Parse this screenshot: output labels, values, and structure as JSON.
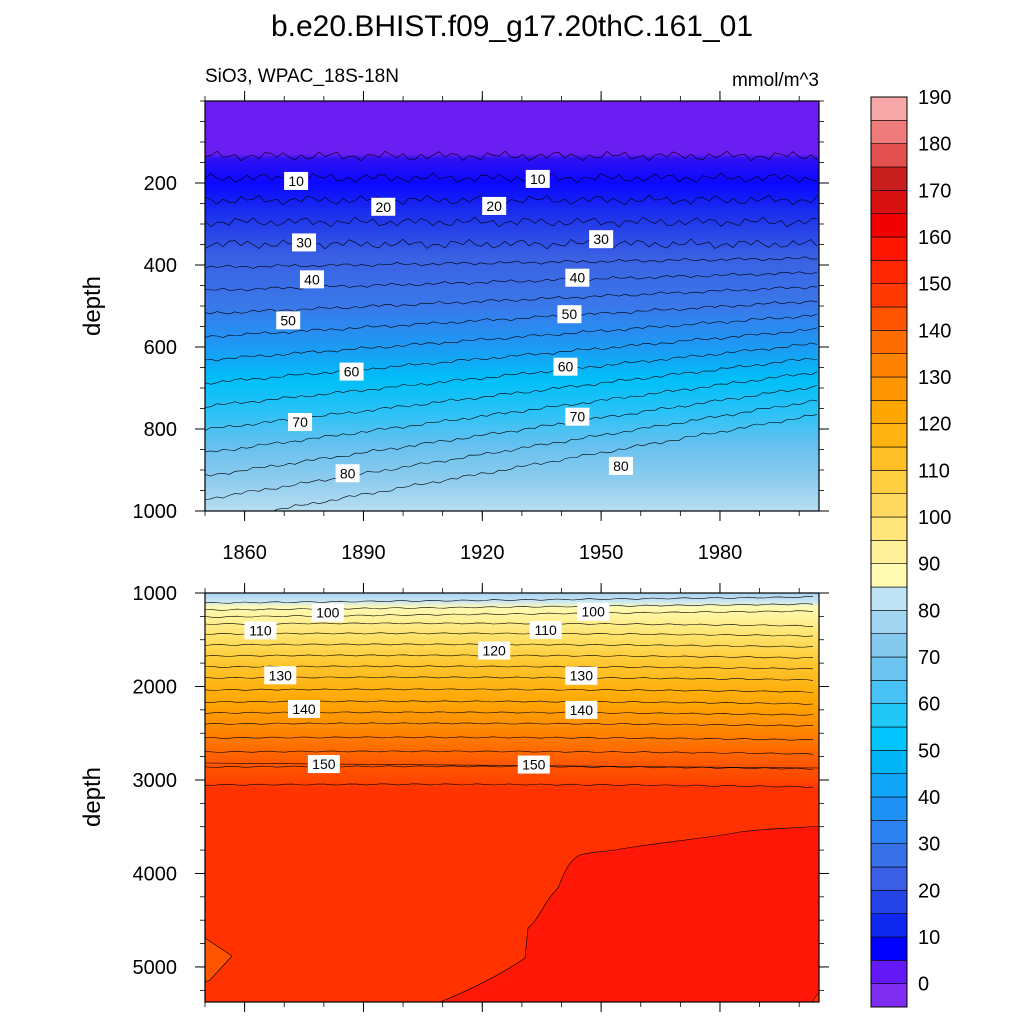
{
  "figure": {
    "title": "b.e20.BHIST.f09_g17.20thC.161_01",
    "subtitle_left": "SiO3, WPAC_18S-18N",
    "units": "mmol/m^3"
  },
  "chart_data": [
    {
      "type": "heatmap",
      "panel": "upper",
      "variable": "SiO3",
      "region": "WPAC_18S-18N",
      "units": "mmol/m^3",
      "ylabel": "depth",
      "xlabel": "",
      "xlim": [
        1850,
        2005
      ],
      "ylim": [
        1000,
        0
      ],
      "xticks": [
        1860,
        1890,
        1920,
        1950,
        1980
      ],
      "yticks": [
        200,
        400,
        600,
        800,
        1000
      ],
      "contour_labels": [
        {
          "value": "10",
          "x": 1873,
          "y": 195
        },
        {
          "value": "10",
          "x": 1934,
          "y": 190
        },
        {
          "value": "20",
          "x": 1895,
          "y": 258
        },
        {
          "value": "20",
          "x": 1923,
          "y": 256
        },
        {
          "value": "30",
          "x": 1875,
          "y": 345
        },
        {
          "value": "30",
          "x": 1950,
          "y": 337
        },
        {
          "value": "40",
          "x": 1877,
          "y": 435
        },
        {
          "value": "40",
          "x": 1944,
          "y": 431
        },
        {
          "value": "50",
          "x": 1871,
          "y": 535
        },
        {
          "value": "50",
          "x": 1942,
          "y": 520
        },
        {
          "value": "60",
          "x": 1887,
          "y": 660
        },
        {
          "value": "60",
          "x": 1941,
          "y": 648
        },
        {
          "value": "70",
          "x": 1874,
          "y": 783
        },
        {
          "value": "70",
          "x": 1944,
          "y": 770
        },
        {
          "value": "80",
          "x": 1886,
          "y": 908
        },
        {
          "value": "80",
          "x": 1955,
          "y": 890
        }
      ]
    },
    {
      "type": "heatmap",
      "panel": "lower",
      "variable": "SiO3",
      "units": "mmol/m^3",
      "ylabel": "depth",
      "xlabel": "",
      "xlim": [
        1850,
        2005
      ],
      "ylim": [
        5375,
        1000
      ],
      "xticks": [
        1860,
        1890,
        1920,
        1950,
        1980
      ],
      "yticks": [
        1000,
        2000,
        3000,
        4000,
        5000
      ],
      "contour_labels": [
        {
          "value": "100",
          "x": 1881,
          "y": 1210
        },
        {
          "value": "100",
          "x": 1948,
          "y": 1200
        },
        {
          "value": "110",
          "x": 1864,
          "y": 1400
        },
        {
          "value": "110",
          "x": 1936,
          "y": 1395
        },
        {
          "value": "120",
          "x": 1923,
          "y": 1615
        },
        {
          "value": "130",
          "x": 1869,
          "y": 1880
        },
        {
          "value": "130",
          "x": 1945,
          "y": 1885
        },
        {
          "value": "140",
          "x": 1875,
          "y": 2240
        },
        {
          "value": "140",
          "x": 1945,
          "y": 2250
        },
        {
          "value": "150",
          "x": 1880,
          "y": 2830
        },
        {
          "value": "150",
          "x": 1933,
          "y": 2835
        }
      ]
    }
  ],
  "colorbar": {
    "labels": [
      "0",
      "10",
      "20",
      "30",
      "40",
      "50",
      "60",
      "70",
      "80",
      "90",
      "100",
      "110",
      "120",
      "130",
      "140",
      "150",
      "160",
      "170",
      "180",
      "190"
    ],
    "colors": [
      "#7f2df0",
      "#6219f5",
      "#0000ff",
      "#0f28f0",
      "#2545e8",
      "#3a5fe6",
      "#3870e8",
      "#2b82f0",
      "#1f93f5",
      "#10a5f7",
      "#00b4f5",
      "#00c4fb",
      "#20c8f8",
      "#48c2f5",
      "#6bc3f0",
      "#86c9ee",
      "#a2d6f0",
      "#bfe3f4",
      "#fffbb2",
      "#fff09a",
      "#ffe57a",
      "#ffd960",
      "#ffcd40",
      "#ffbf25",
      "#ffb412",
      "#ffa500",
      "#ff9600",
      "#ff8200",
      "#ff6c00",
      "#ff5500",
      "#ff3a00",
      "#ff2800",
      "#ff1600",
      "#f00000",
      "#d81010",
      "#c81f1f",
      "#e35050",
      "#f07b7b",
      "#f7a8a8"
    ]
  }
}
